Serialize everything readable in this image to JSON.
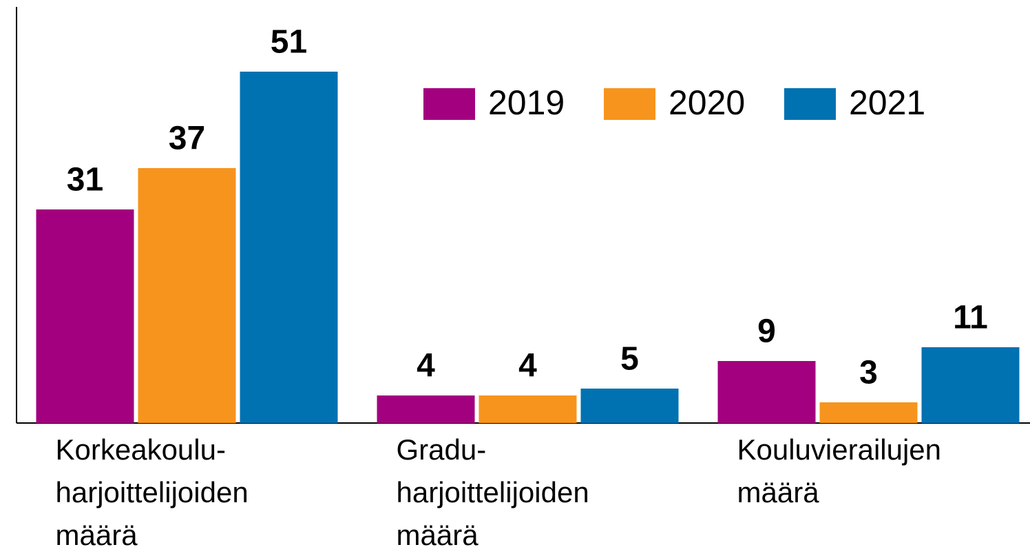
{
  "chart_data": {
    "type": "bar",
    "categories": [
      "Korkeakoulu- harjoittelijoiden määrä",
      "Gradu- harjoittelijoiden määrä",
      "Kouluvierailujen määrä"
    ],
    "series": [
      {
        "name": "2019",
        "color": "#a3007f",
        "values": [
          31,
          4,
          9
        ]
      },
      {
        "name": "2020",
        "color": "#f7941d",
        "values": [
          37,
          4,
          3
        ]
      },
      {
        "name": "2021",
        "color": "#0072b1",
        "values": [
          51,
          5,
          11
        ]
      }
    ],
    "ylim": [
      0,
      60
    ],
    "legend": "top-right"
  }
}
